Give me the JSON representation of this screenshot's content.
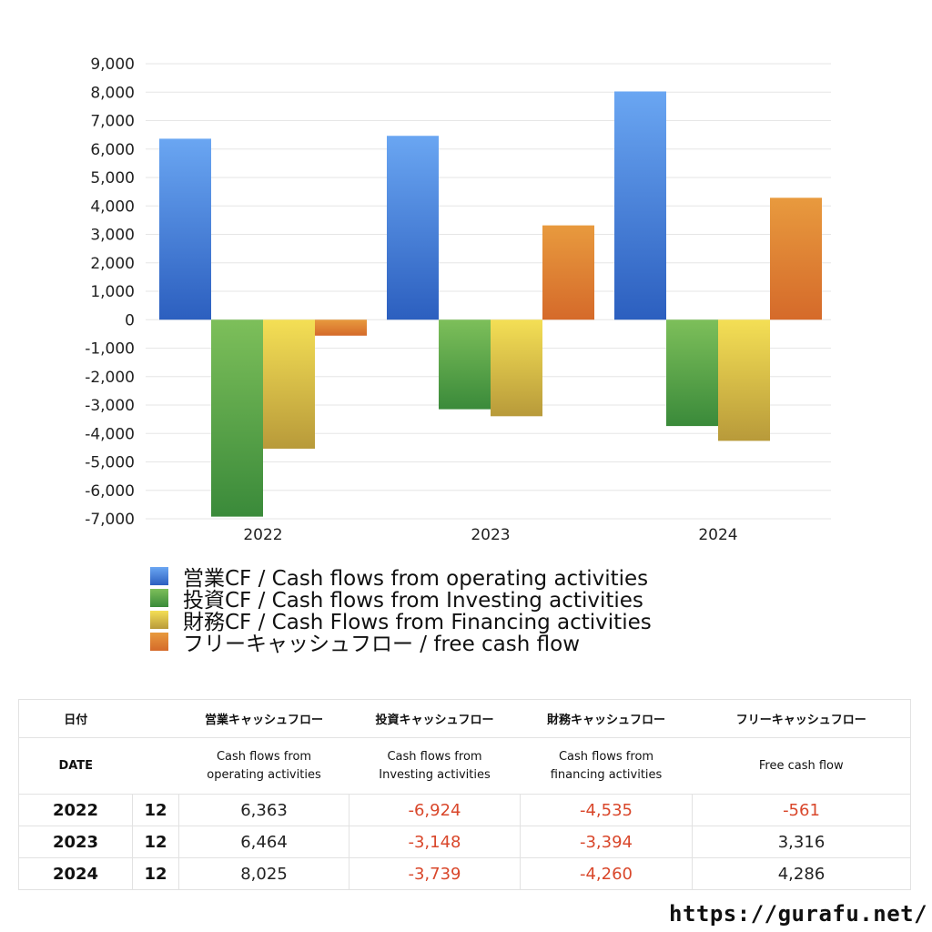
{
  "chart_data": {
    "type": "bar",
    "categories": [
      "2022",
      "2023",
      "2024"
    ],
    "series": [
      {
        "name": "営業CF / Cash flows from operating activities",
        "values": [
          6363,
          6464,
          8025
        ],
        "colors": [
          "#6aa6f2",
          "#2c5fbf"
        ]
      },
      {
        "name": "投資CF / Cash flows from Investing activities",
        "values": [
          -6924,
          -3148,
          -3739
        ],
        "colors": [
          "#7dbf5a",
          "#3a8a3a"
        ]
      },
      {
        "name": "財務CF / Cash Flows from Financing activities",
        "values": [
          -4535,
          -3394,
          -4260
        ],
        "colors": [
          "#f4df55",
          "#b89a3a"
        ]
      },
      {
        "name": "フリーキャッシュフロー / free cash flow",
        "values": [
          -561,
          3316,
          4286
        ],
        "colors": [
          "#e89a3e",
          "#d56a2a"
        ]
      }
    ],
    "ylim": [
      -7000,
      9000
    ],
    "yticks": [
      9000,
      8000,
      7000,
      6000,
      5000,
      4000,
      3000,
      2000,
      1000,
      0,
      -1000,
      -2000,
      -3000,
      -4000,
      -5000,
      -6000,
      -7000
    ],
    "ytick_labels": [
      "9,000",
      "8,000",
      "7,000",
      "6,000",
      "5,000",
      "4,000",
      "3,000",
      "2,000",
      "1,000",
      "0",
      "-1,000",
      "-2,000",
      "-3,000",
      "-4,000",
      "-5,000",
      "-6,000",
      "-7,000"
    ],
    "grid": true,
    "legend_position": "bottom-left"
  },
  "table": {
    "header": {
      "date_jp": "日付",
      "operating_jp": "営業キャッシュフロー",
      "investing_jp": "投資キャッシュフロー",
      "financing_jp": "財務キャッシュフロー",
      "free_jp": "フリーキャッシュフロー",
      "date_en": "DATE",
      "operating_en_1": "Cash flows from",
      "operating_en_2": "operating activities",
      "investing_en_1": "Cash flows from",
      "investing_en_2": "Investing activities",
      "financing_en_1": "Cash flows from",
      "financing_en_2": "financing activities",
      "free_en": "Free cash flow"
    },
    "rows": [
      {
        "year": "2022",
        "month": "12",
        "operating": "6,363",
        "investing": "-6,924",
        "financing": "-4,535",
        "free": "-561"
      },
      {
        "year": "2023",
        "month": "12",
        "operating": "6,464",
        "investing": "-3,148",
        "financing": "-3,394",
        "free": "3,316"
      },
      {
        "year": "2024",
        "month": "12",
        "operating": "8,025",
        "investing": "-3,739",
        "financing": "-4,260",
        "free": "4,286"
      }
    ]
  },
  "footer": {
    "url": "https://gurafu.net/"
  }
}
